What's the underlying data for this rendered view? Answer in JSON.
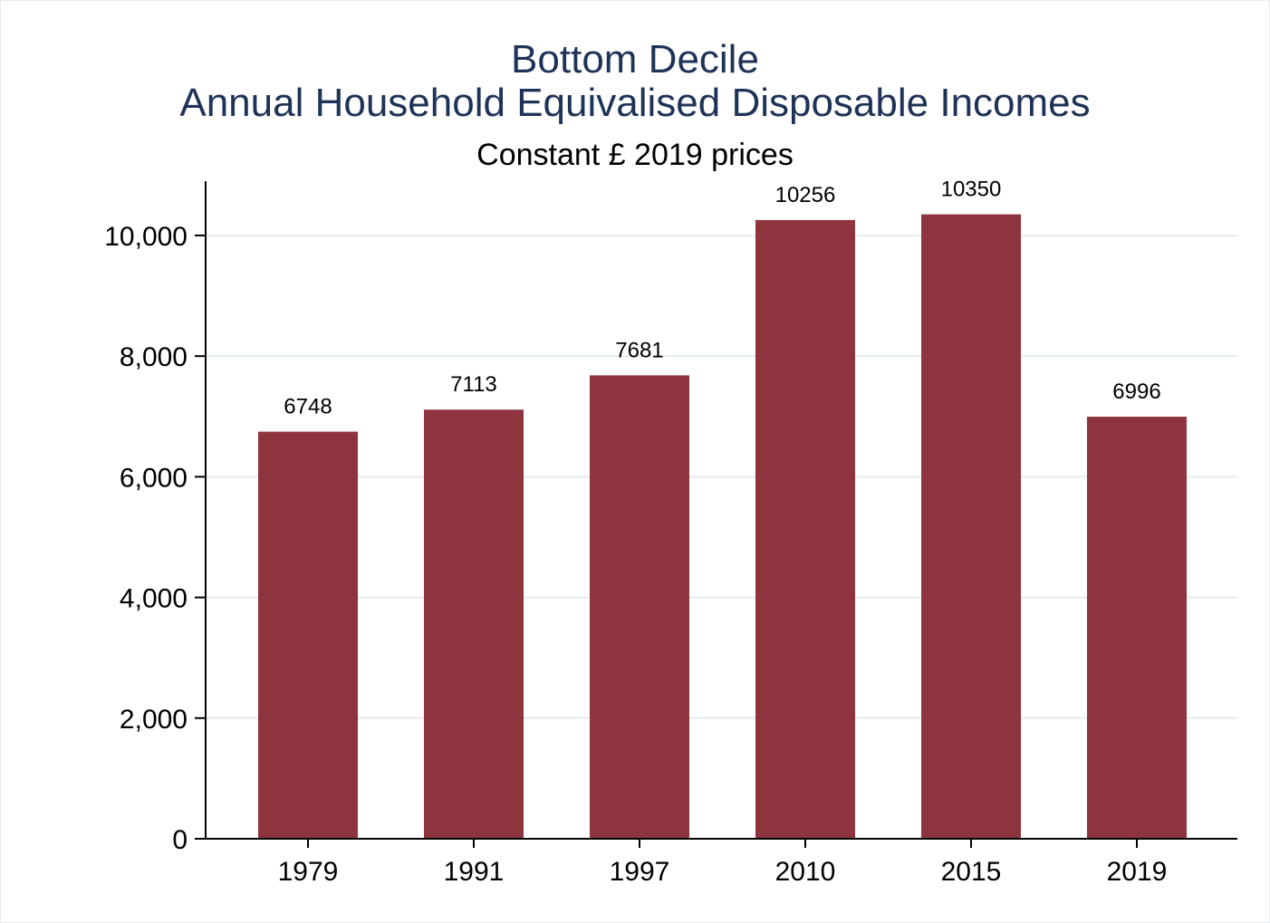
{
  "chart_data": {
    "type": "bar",
    "title": "Bottom Decile",
    "title_line2": "Annual Household Equivalised Disposable Incomes",
    "subtitle": "Constant £ 2019 prices",
    "xlabel": "",
    "ylabel": "",
    "categories": [
      "1979",
      "1991",
      "1997",
      "2010",
      "2015",
      "2019"
    ],
    "values": [
      6748,
      7113,
      7681,
      10256,
      10350,
      6996
    ],
    "data_labels": [
      "6748",
      "7113",
      "7681",
      "10256",
      "10350",
      "6996"
    ],
    "ylim": [
      0,
      10900
    ],
    "yticks": [
      0,
      2000,
      4000,
      6000,
      8000,
      10000
    ],
    "ytick_labels": [
      "0",
      "2,000",
      "4,000",
      "6,000",
      "8,000",
      "10,000"
    ],
    "grid": true,
    "legend": "none",
    "colors": {
      "bar": "#8e343e",
      "title": "#1f3358",
      "grid": "#e6ebee",
      "axis": "#000000"
    }
  }
}
